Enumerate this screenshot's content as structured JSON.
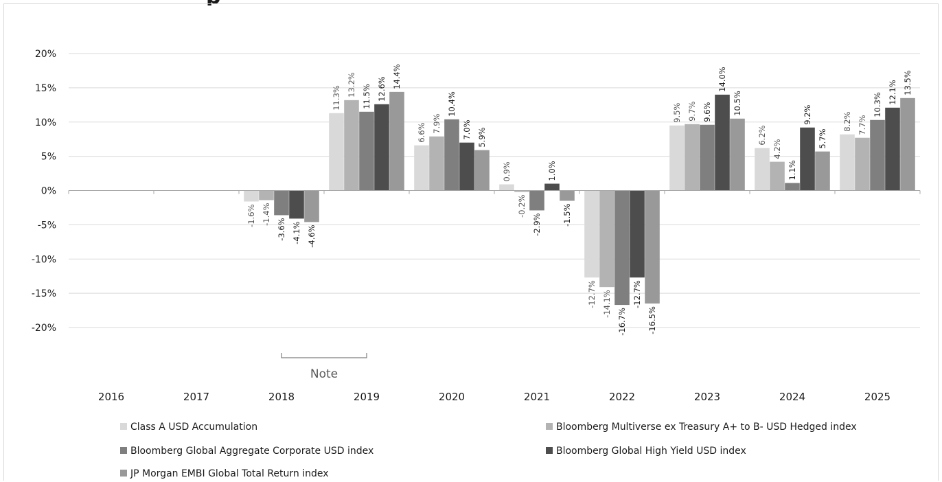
{
  "chart_data": {
    "type": "bar",
    "title": "",
    "xlabel": "",
    "ylabel": "",
    "ylim": [
      -20,
      20
    ],
    "y_ticks": [
      "20%",
      "15%",
      "10%",
      "5%",
      "0%",
      "-5%",
      "-10%",
      "-15%",
      "-20%"
    ],
    "y_tick_values": [
      20,
      15,
      10,
      5,
      0,
      -5,
      -10,
      -15,
      -20
    ],
    "grid": true,
    "legend_position": "bottom",
    "categories": [
      "2016",
      "2017",
      "2018",
      "2019",
      "2020",
      "2021",
      "2022",
      "2023",
      "2024",
      "2025"
    ],
    "series": [
      {
        "name": "Class A USD Accumulation",
        "color": "#d9d9d9",
        "values": [
          null,
          null,
          -1.6,
          11.3,
          6.6,
          0.9,
          -12.7,
          9.5,
          6.2,
          8.2
        ],
        "labels": [
          "",
          "",
          "-1.6%",
          "11.3%",
          "6.6%",
          "0.9%",
          "-12.7%",
          "9.5%",
          "6.2%",
          "8.2%"
        ]
      },
      {
        "name": "Bloomberg Multiverse ex Treasury A+ to B- USD Hedged index",
        "color": "#b3b3b3",
        "values": [
          null,
          null,
          -1.4,
          13.2,
          7.9,
          -0.2,
          -14.1,
          9.7,
          4.2,
          7.7
        ],
        "labels": [
          "",
          "",
          "-1.4%",
          "13.2%",
          "7.9%",
          "-0.2%",
          "-14.1%",
          "9.7%",
          "4.2%",
          "7.7%"
        ]
      },
      {
        "name": "Bloomberg Global Aggregate Corporate USD index",
        "color": "#7f7f7f",
        "values": [
          null,
          null,
          -3.6,
          11.5,
          10.4,
          -2.9,
          -16.7,
          9.6,
          1.1,
          10.3
        ],
        "labels": [
          "",
          "",
          "-3.6%",
          "11.5%",
          "10.4%",
          "-2.9%",
          "-16.7%",
          "9.6%",
          "1.1%",
          "10.3%"
        ]
      },
      {
        "name": "Bloomberg Global High Yield USD index",
        "color": "#4d4d4d",
        "values": [
          null,
          null,
          -4.1,
          12.6,
          7.0,
          1.0,
          -12.7,
          14.0,
          9.2,
          12.1
        ],
        "labels": [
          "",
          "",
          "-4.1%",
          "12.6%",
          "7.0%",
          "1.0%",
          "-12.7%",
          "14.0%",
          "9.2%",
          "12.1%"
        ]
      },
      {
        "name": "JP Morgan EMBI Global Total Return index",
        "color": "#999999",
        "values": [
          null,
          null,
          -4.6,
          14.4,
          5.9,
          -1.5,
          -16.5,
          10.5,
          5.7,
          13.5
        ],
        "labels": [
          "",
          "",
          "-4.6%",
          "14.4%",
          "5.9%",
          "-1.5%",
          "-16.5%",
          "10.5%",
          "5.7%",
          "13.5%"
        ]
      }
    ],
    "annotations": [
      {
        "text": "Note",
        "from_category": "2018",
        "to_category": "2019"
      }
    ]
  }
}
